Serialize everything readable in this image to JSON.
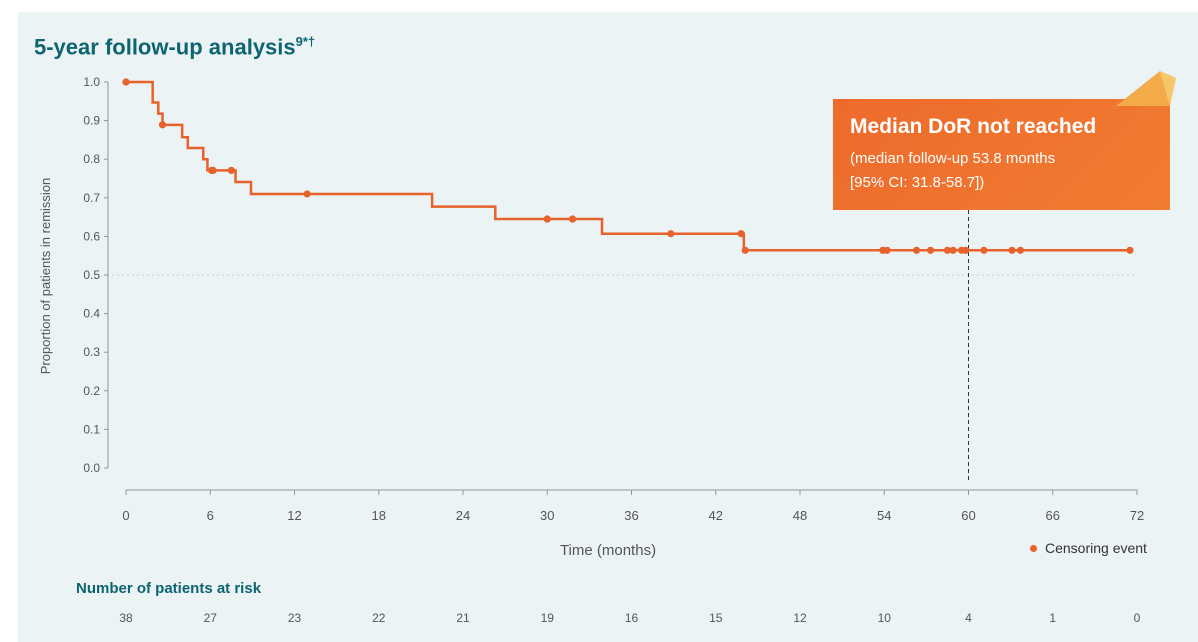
{
  "title": "5-year follow-up analysis",
  "title_superscript": "9*†",
  "callout": {
    "headline": "Median DoR not reached",
    "line1": "(median follow-up 53.8 months",
    "line2": "[95% CI: 31.8-58.7])"
  },
  "legend": {
    "label": "Censoring event"
  },
  "risk_table": {
    "title": "Number of patients at risk",
    "counts": [
      "38",
      "27",
      "23",
      "22",
      "21",
      "19",
      "16",
      "15",
      "12",
      "10",
      "4",
      "1",
      "0"
    ]
  },
  "colors": {
    "curve": "#e8622b",
    "title": "#0e6470",
    "panel_background": "#ebf3f5",
    "callout": "#ee6a2c",
    "callout_corner": "#f3ab4a"
  },
  "chart_data": {
    "type": "line",
    "title": "5-year follow-up analysis",
    "xlabel": "Time (months)",
    "ylabel": "Proportion of patients in remission",
    "xlim": [
      0,
      72
    ],
    "ylim": [
      0,
      1
    ],
    "x_ticks": [
      0,
      6,
      12,
      18,
      24,
      30,
      36,
      42,
      48,
      54,
      60,
      66,
      72
    ],
    "y_ticks": [
      "0.0",
      "0.1",
      "0.2",
      "0.3",
      "0.4",
      "0.5",
      "0.6",
      "0.7",
      "0.8",
      "0.9",
      "1.0"
    ],
    "reference_lines": [
      {
        "axis": "y",
        "value": 0.5,
        "style": "dotted"
      },
      {
        "axis": "x",
        "value": 60,
        "style": "dashed"
      }
    ],
    "step_curve": {
      "x": [
        0,
        1.9,
        2.3,
        2.6,
        3.1,
        4.0,
        4.4,
        5.5,
        5.8,
        7.8,
        8.9,
        21.8,
        26.3,
        33.9,
        44.0,
        71.5
      ],
      "y": [
        1.0,
        0.947,
        0.918,
        0.889,
        0.889,
        0.857,
        0.829,
        0.8,
        0.771,
        0.741,
        0.71,
        0.677,
        0.645,
        0.607,
        0.564,
        0.564
      ]
    },
    "censoring_events": {
      "label": "Censoring event",
      "x": [
        0,
        2.6,
        6.1,
        6.2,
        7.5,
        12.9,
        30,
        31.8,
        38.8,
        43.8,
        44.1,
        53.9,
        54.2,
        56.3,
        57.3,
        58.5,
        58.9,
        59.5,
        59.8,
        61.1,
        63.1,
        63.7,
        71.5
      ],
      "y": [
        1.0,
        0.889,
        0.771,
        0.771,
        0.771,
        0.71,
        0.645,
        0.645,
        0.607,
        0.607,
        0.564,
        0.564,
        0.564,
        0.564,
        0.564,
        0.564,
        0.564,
        0.564,
        0.564,
        0.564,
        0.564,
        0.564,
        0.564
      ]
    }
  }
}
